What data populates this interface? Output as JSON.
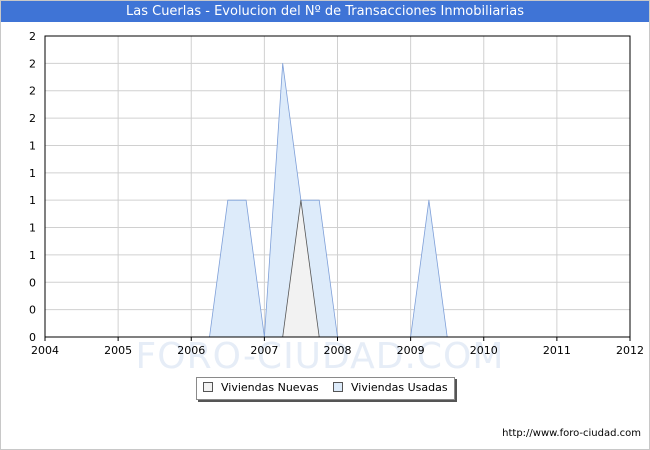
{
  "header": {
    "title": "Las Cuerlas - Evolucion del Nº de Transacciones Inmobiliarias"
  },
  "watermark": "FORO-CIUDAD.COM",
  "footer": {
    "credit": "http://www.foro-ciudad.com"
  },
  "chart_data": {
    "type": "area",
    "title": "Las Cuerlas - Evolucion del Nº de Transacciones Inmobiliarias",
    "xlabel": "",
    "ylabel": "",
    "xlim": [
      2004,
      2012
    ],
    "ylim": [
      0,
      2.2
    ],
    "x_ticks": [
      "2004",
      "2005",
      "2006",
      "2007",
      "2008",
      "2009",
      "2010",
      "2011",
      "2012"
    ],
    "y_ticks": [
      {
        "value": 0,
        "label": "0"
      },
      {
        "value": 0.2,
        "label": "0"
      },
      {
        "value": 0.4,
        "label": "0"
      },
      {
        "value": 0.6,
        "label": "1"
      },
      {
        "value": 0.8,
        "label": "1"
      },
      {
        "value": 1.0,
        "label": "1"
      },
      {
        "value": 1.2,
        "label": "1"
      },
      {
        "value": 1.4,
        "label": "1"
      },
      {
        "value": 1.6,
        "label": "2"
      },
      {
        "value": 1.8,
        "label": "2"
      },
      {
        "value": 2.0,
        "label": "2"
      },
      {
        "value": 2.2,
        "label": "2"
      }
    ],
    "grid": true,
    "legend_position": "bottom-center",
    "series": [
      {
        "name": "Viviendas Usadas",
        "color": "#ddebfa",
        "stroke": "#7e9fd8",
        "points": [
          [
            2006.25,
            0
          ],
          [
            2006.5,
            1
          ],
          [
            2006.75,
            1
          ],
          [
            2007.0,
            0
          ],
          [
            2007.25,
            2
          ],
          [
            2007.5,
            1
          ],
          [
            2007.75,
            1
          ],
          [
            2008.0,
            0
          ],
          [
            2009.0,
            0
          ],
          [
            2009.25,
            1
          ],
          [
            2009.5,
            0
          ]
        ]
      },
      {
        "name": "Viviendas Nuevas",
        "color": "#f2f2f2",
        "stroke": "#555555",
        "points": [
          [
            2007.25,
            0
          ],
          [
            2007.5,
            1
          ],
          [
            2007.75,
            0
          ]
        ]
      }
    ]
  }
}
